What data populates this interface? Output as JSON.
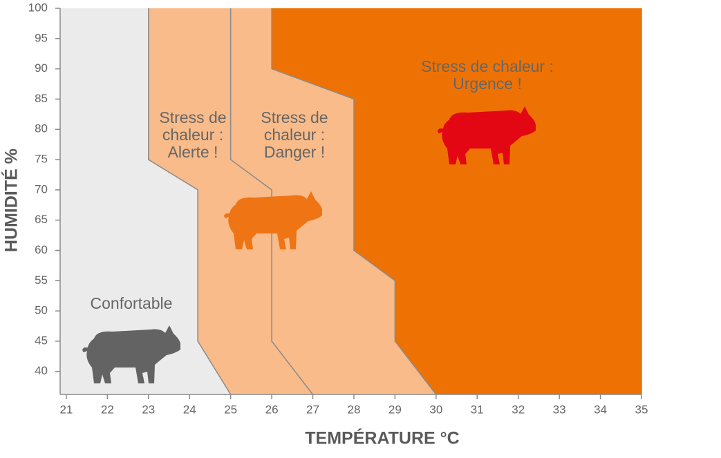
{
  "chart_data": {
    "type": "zones",
    "xlabel": "TEMPÉRATURE °C",
    "ylabel": "HUMIDITÉ %",
    "xlim": [
      20.85,
      35
    ],
    "ylim": [
      36.2,
      100
    ],
    "xticks": [
      21,
      22,
      23,
      24,
      25,
      26,
      27,
      28,
      29,
      30,
      31,
      32,
      33,
      34,
      35
    ],
    "yticks": [
      40,
      45,
      50,
      55,
      60,
      65,
      70,
      75,
      80,
      85,
      90,
      95,
      100
    ],
    "boundaries": [
      {
        "x": [
          23,
          23,
          24.2,
          24.2,
          25
        ],
        "y": [
          100,
          75,
          70,
          45,
          36.2
        ]
      },
      {
        "x": [
          25,
          25,
          26,
          26,
          27
        ],
        "y": [
          100,
          75,
          70,
          45,
          36.2
        ]
      },
      {
        "x": [
          26,
          26,
          28,
          28,
          29,
          29,
          30
        ],
        "y": [
          100,
          90,
          85,
          60,
          55,
          45,
          36.2
        ]
      }
    ],
    "zones": [
      {
        "label": [
          "Confortable"
        ],
        "color": "#ebebeb",
        "icon_color": "#636363"
      },
      {
        "label": [
          "Stress de",
          "chaleur :",
          "Alerte !"
        ],
        "color": "#f8bb89",
        "icon_color": "#ef7414"
      },
      {
        "label": [
          "Stress de",
          "chaleur :",
          "Danger !"
        ],
        "color": "#f8bb89"
      },
      {
        "label": [
          "Stress de chaleur :",
          "Urgence !"
        ],
        "color": "#ee7203",
        "icon_color": "#e30613"
      }
    ]
  }
}
